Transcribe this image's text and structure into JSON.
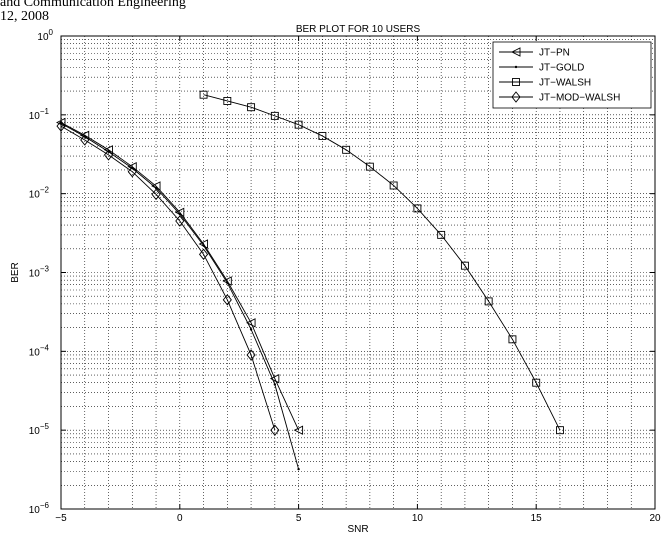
{
  "page_header": {
    "line1": "and Communication Engineering",
    "line2": "12, 2008"
  },
  "chart_data": {
    "type": "line",
    "title": "BER PLOT FOR 10 USERS",
    "xlabel": "SNR",
    "ylabel": "BER",
    "xlim": [
      -5,
      20
    ],
    "ylim": [
      1e-06,
      1
    ],
    "yscale": "log",
    "grid": true,
    "legend_position": "top-right",
    "x_ticks": [
      -5,
      0,
      5,
      10,
      15,
      20
    ],
    "x_tick_labels": [
      "−5",
      "0",
      "5",
      "10",
      "15",
      "20"
    ],
    "y_ticks": [
      1e-06,
      1e-05,
      0.0001,
      0.001,
      0.01,
      0.1,
      1
    ],
    "y_tick_labels": [
      {
        "base": "10",
        "exp": "−6"
      },
      {
        "base": "10",
        "exp": "−5"
      },
      {
        "base": "10",
        "exp": "−4"
      },
      {
        "base": "10",
        "exp": "−3"
      },
      {
        "base": "10",
        "exp": "−2"
      },
      {
        "base": "10",
        "exp": "−1"
      },
      {
        "base": "10",
        "exp": "0"
      }
    ],
    "series": [
      {
        "name": "JT−PN",
        "marker": "triangle-left",
        "x": [
          -5,
          -4,
          -3,
          -2,
          -1,
          0,
          1,
          2,
          3,
          4,
          5
        ],
        "y": [
          0.08,
          0.055,
          0.036,
          0.022,
          0.0125,
          0.0058,
          0.0023,
          0.00078,
          0.00023,
          4.5e-05,
          1e-05
        ]
      },
      {
        "name": "JT−GOLD",
        "marker": "dot",
        "x": [
          -5,
          -4,
          -3,
          -2,
          -1,
          0,
          1,
          2,
          3,
          4,
          5
        ],
        "y": [
          0.078,
          0.053,
          0.034,
          0.021,
          0.0118,
          0.0055,
          0.0022,
          0.00074,
          0.00019,
          3.8e-05,
          3.2e-06
        ]
      },
      {
        "name": "JT−WALSH",
        "marker": "square",
        "x": [
          1,
          2,
          3,
          4,
          5,
          6,
          7,
          8,
          9,
          10,
          11,
          12,
          13,
          14,
          15,
          16
        ],
        "y": [
          0.18,
          0.15,
          0.125,
          0.097,
          0.075,
          0.054,
          0.036,
          0.022,
          0.0127,
          0.0065,
          0.003,
          0.00122,
          0.00043,
          0.000142,
          4e-05,
          1e-05
        ]
      },
      {
        "name": "JT−MOD−WALSH",
        "marker": "diamond",
        "x": [
          -5,
          -4,
          -3,
          -2,
          -1,
          0,
          1,
          2,
          3,
          4
        ],
        "y": [
          0.072,
          0.048,
          0.031,
          0.019,
          0.0098,
          0.0045,
          0.0017,
          0.00045,
          9e-05,
          1e-05
        ]
      }
    ]
  }
}
